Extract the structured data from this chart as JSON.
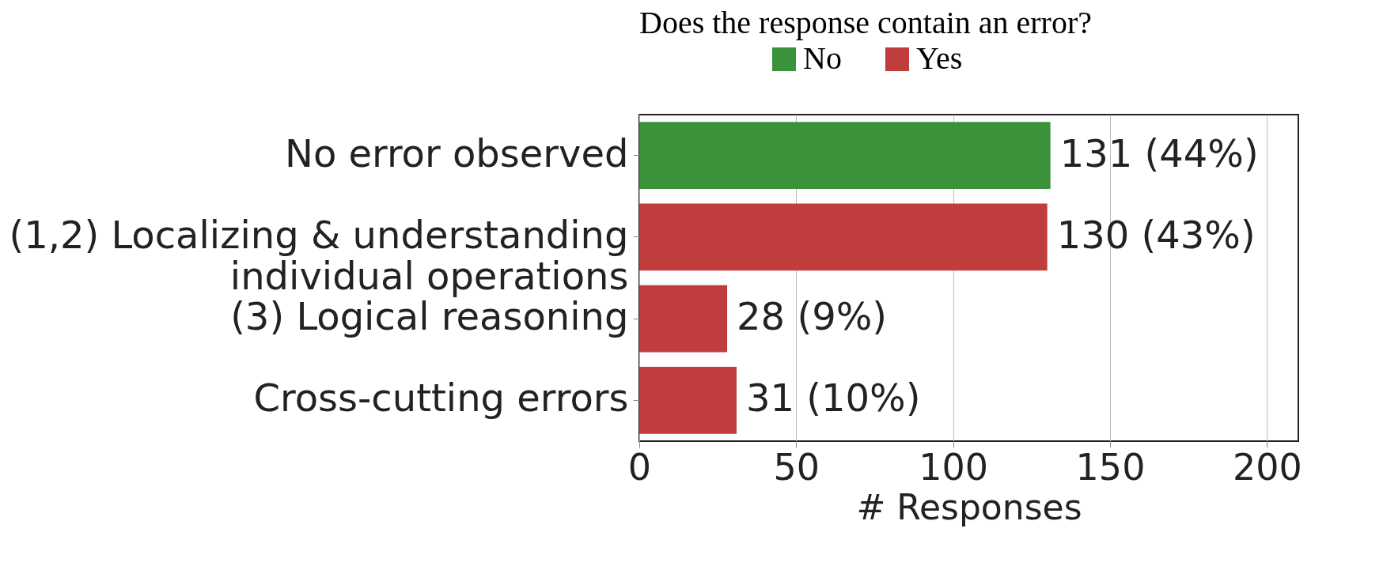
{
  "chart_data": {
    "type": "bar",
    "orientation": "horizontal",
    "legend_title": "Does the response contain an error?",
    "legend": "top",
    "categories": [
      "No error observed",
      "(1,2) Localizing & understanding\nindividual operations",
      "(3) Logical reasoning",
      "Cross-cutting errors"
    ],
    "series": [
      {
        "name": "No",
        "color": "#3a923a",
        "values": [
          131,
          null,
          null,
          null
        ],
        "value_labels": [
          "131 (44%)",
          null,
          null,
          null
        ]
      },
      {
        "name": "Yes",
        "color": "#c03d3e",
        "values": [
          null,
          130,
          28,
          31
        ],
        "value_labels": [
          null,
          "130 (43%)",
          "28 (9%)",
          "31 (10%)"
        ]
      }
    ],
    "xlabel": "# Responses",
    "xlim": [
      0,
      210
    ],
    "xticks": [
      0,
      50,
      100,
      150,
      200
    ],
    "grid": "x"
  }
}
